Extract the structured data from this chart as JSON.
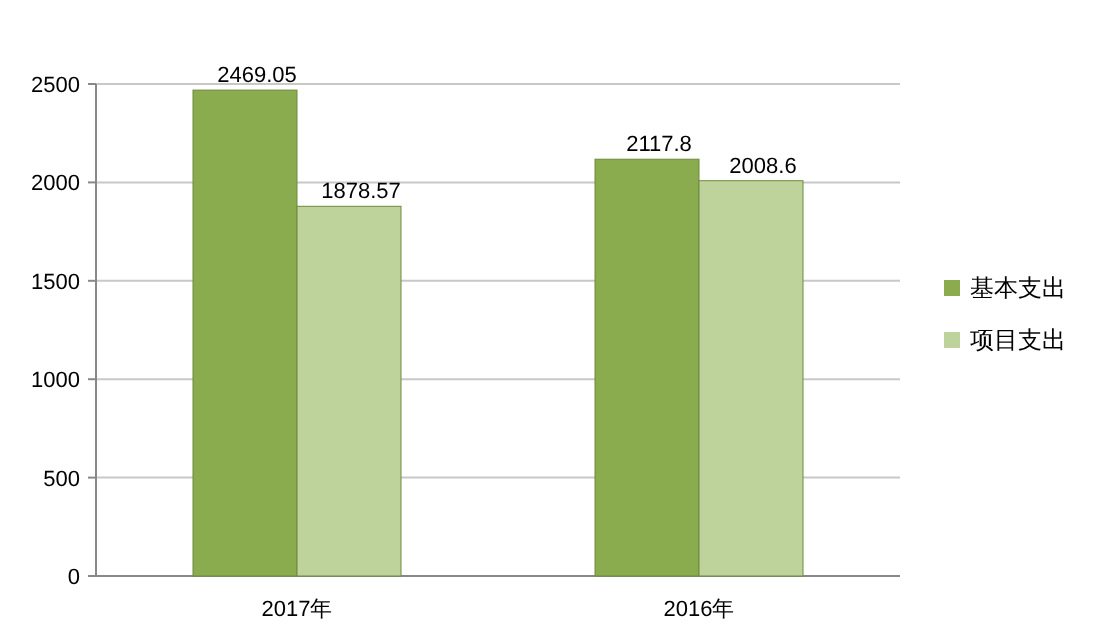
{
  "chart_data": {
    "type": "bar",
    "categories": [
      "2017年",
      "2016年"
    ],
    "series": [
      {
        "name": "基本支出",
        "color": "#8aab4e",
        "values": [
          2469.05,
          2117.8
        ]
      },
      {
        "name": "项目支出",
        "color": "#bdd39b",
        "values": [
          1878.57,
          2008.6
        ]
      }
    ],
    "ylim": [
      0,
      2500
    ],
    "yticks": [
      0,
      500,
      1000,
      1500,
      2000,
      2500
    ],
    "grid": "y",
    "legend": "right",
    "data_labels": true
  }
}
